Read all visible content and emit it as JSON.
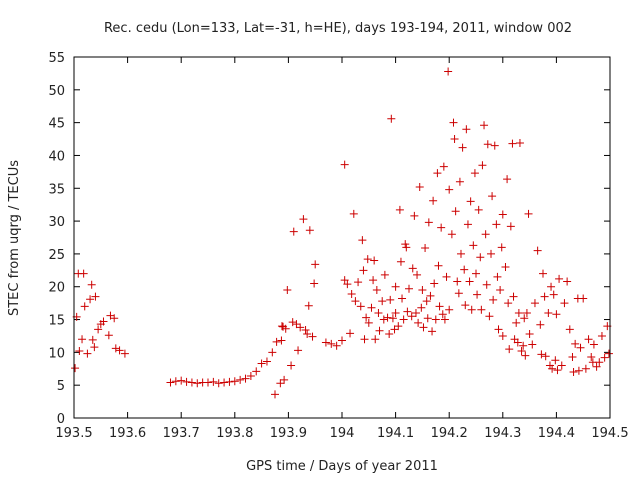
{
  "chart_data": {
    "type": "scatter",
    "title": "Rec. cedu (Lon=133, Lat=-31, h=HE), days 193-194, 2011, window 002",
    "xlabel": "GPS time / Days of year 2011",
    "ylabel": "STEC from uqrg / TECUs",
    "xlim": [
      193.5,
      194.5
    ],
    "ylim": [
      0,
      55
    ],
    "xticks": [
      193.5,
      193.6,
      193.7,
      193.8,
      193.9,
      194,
      194.1,
      194.2,
      194.3,
      194.4,
      194.5
    ],
    "xtick_labels": [
      "193.5",
      "193.6",
      "193.7",
      "193.8",
      "193.9",
      "194",
      "194.1",
      "194.2",
      "194.3",
      "194.4",
      "194.5"
    ],
    "yticks": [
      0,
      5,
      10,
      15,
      20,
      25,
      30,
      35,
      40,
      45,
      50,
      55
    ],
    "ytick_labels": [
      "0",
      "5",
      "10",
      "15",
      "20",
      "25",
      "30",
      "35",
      "40",
      "45",
      "50",
      "55"
    ],
    "marker": "plus",
    "color": "#cc0000",
    "grid": false,
    "points": [
      [
        193.502,
        7.6
      ],
      [
        193.505,
        15.4
      ],
      [
        193.508,
        22.0
      ],
      [
        193.51,
        10.2
      ],
      [
        193.515,
        12.0
      ],
      [
        193.518,
        22.0
      ],
      [
        193.52,
        17.0
      ],
      [
        193.525,
        9.8
      ],
      [
        193.53,
        18.1
      ],
      [
        193.533,
        20.3
      ],
      [
        193.535,
        11.9
      ],
      [
        193.538,
        10.8
      ],
      [
        193.54,
        18.5
      ],
      [
        193.545,
        13.5
      ],
      [
        193.55,
        14.3
      ],
      [
        193.555,
        14.7
      ],
      [
        193.565,
        12.6
      ],
      [
        193.568,
        15.6
      ],
      [
        193.575,
        15.2
      ],
      [
        193.578,
        10.6
      ],
      [
        193.585,
        10.3
      ],
      [
        193.595,
        9.8
      ],
      [
        193.68,
        5.4
      ],
      [
        193.69,
        5.6
      ],
      [
        193.7,
        5.7
      ],
      [
        193.71,
        5.5
      ],
      [
        193.72,
        5.4
      ],
      [
        193.73,
        5.3
      ],
      [
        193.74,
        5.4
      ],
      [
        193.75,
        5.4
      ],
      [
        193.76,
        5.5
      ],
      [
        193.77,
        5.3
      ],
      [
        193.78,
        5.4
      ],
      [
        193.79,
        5.5
      ],
      [
        193.8,
        5.6
      ],
      [
        193.81,
        5.8
      ],
      [
        193.82,
        6.0
      ],
      [
        193.83,
        6.4
      ],
      [
        193.84,
        7.1
      ],
      [
        193.85,
        8.3
      ],
      [
        193.86,
        8.6
      ],
      [
        193.87,
        10.0
      ],
      [
        193.875,
        3.6
      ],
      [
        193.878,
        11.6
      ],
      [
        193.885,
        5.3
      ],
      [
        193.887,
        11.8
      ],
      [
        193.888,
        14.0
      ],
      [
        193.89,
        13.9
      ],
      [
        193.892,
        5.8
      ],
      [
        193.895,
        13.6
      ],
      [
        193.898,
        19.5
      ],
      [
        193.905,
        8.0
      ],
      [
        193.908,
        14.6
      ],
      [
        193.91,
        28.4
      ],
      [
        193.915,
        14.3
      ],
      [
        193.918,
        10.3
      ],
      [
        193.922,
        13.8
      ],
      [
        193.928,
        30.3
      ],
      [
        193.932,
        13.4
      ],
      [
        193.935,
        12.8
      ],
      [
        193.938,
        17.1
      ],
      [
        193.94,
        28.6
      ],
      [
        193.945,
        12.4
      ],
      [
        193.948,
        20.5
      ],
      [
        193.95,
        23.4
      ],
      [
        193.97,
        11.5
      ],
      [
        193.98,
        11.3
      ],
      [
        193.99,
        11.0
      ],
      [
        194.0,
        11.8
      ],
      [
        194.005,
        21.0
      ],
      [
        194.005,
        38.6
      ],
      [
        194.01,
        20.4
      ],
      [
        194.015,
        12.9
      ],
      [
        194.018,
        18.9
      ],
      [
        194.022,
        31.1
      ],
      [
        194.025,
        17.8
      ],
      [
        194.03,
        20.7
      ],
      [
        194.035,
        17.0
      ],
      [
        194.038,
        27.1
      ],
      [
        194.04,
        22.5
      ],
      [
        194.042,
        12.0
      ],
      [
        194.045,
        15.3
      ],
      [
        194.048,
        24.2
      ],
      [
        194.05,
        14.5
      ],
      [
        194.055,
        16.8
      ],
      [
        194.058,
        21.0
      ],
      [
        194.06,
        24.0
      ],
      [
        194.062,
        12.0
      ],
      [
        194.065,
        19.5
      ],
      [
        194.068,
        16.0
      ],
      [
        194.07,
        13.3
      ],
      [
        194.075,
        17.8
      ],
      [
        194.078,
        15.0
      ],
      [
        194.08,
        21.8
      ],
      [
        194.085,
        15.3
      ],
      [
        194.088,
        12.8
      ],
      [
        194.09,
        18.0
      ],
      [
        194.092,
        45.6
      ],
      [
        194.095,
        15.2
      ],
      [
        194.098,
        13.5
      ],
      [
        194.1,
        20.0
      ],
      [
        194.1,
        16.0
      ],
      [
        194.105,
        14.0
      ],
      [
        194.108,
        31.7
      ],
      [
        194.11,
        23.8
      ],
      [
        194.112,
        18.2
      ],
      [
        194.115,
        15.0
      ],
      [
        194.118,
        26.5
      ],
      [
        194.12,
        26.0
      ],
      [
        194.122,
        16.2
      ],
      [
        194.125,
        19.7
      ],
      [
        194.13,
        15.5
      ],
      [
        194.132,
        22.8
      ],
      [
        194.135,
        30.8
      ],
      [
        194.138,
        16.0
      ],
      [
        194.14,
        21.8
      ],
      [
        194.142,
        14.5
      ],
      [
        194.145,
        35.2
      ],
      [
        194.148,
        16.8
      ],
      [
        194.15,
        19.5
      ],
      [
        194.152,
        13.8
      ],
      [
        194.155,
        25.9
      ],
      [
        194.158,
        17.8
      ],
      [
        194.16,
        15.2
      ],
      [
        194.162,
        29.8
      ],
      [
        194.165,
        18.6
      ],
      [
        194.168,
        13.2
      ],
      [
        194.17,
        33.1
      ],
      [
        194.172,
        20.5
      ],
      [
        194.175,
        15.0
      ],
      [
        194.178,
        37.3
      ],
      [
        194.18,
        23.2
      ],
      [
        194.182,
        17.0
      ],
      [
        194.185,
        29.0
      ],
      [
        194.188,
        15.8
      ],
      [
        194.19,
        38.3
      ],
      [
        194.192,
        15.0
      ],
      [
        194.195,
        21.5
      ],
      [
        194.198,
        52.8
      ],
      [
        194.2,
        16.5
      ],
      [
        194.2,
        34.8
      ],
      [
        194.205,
        28.0
      ],
      [
        194.208,
        45.0
      ],
      [
        194.21,
        42.5
      ],
      [
        194.212,
        31.5
      ],
      [
        194.215,
        20.8
      ],
      [
        194.218,
        19.0
      ],
      [
        194.22,
        36.0
      ],
      [
        194.222,
        25.0
      ],
      [
        194.225,
        41.2
      ],
      [
        194.228,
        22.6
      ],
      [
        194.23,
        17.2
      ],
      [
        194.232,
        44.0
      ],
      [
        194.235,
        29.5
      ],
      [
        194.238,
        20.8
      ],
      [
        194.24,
        33.0
      ],
      [
        194.242,
        16.5
      ],
      [
        194.245,
        26.3
      ],
      [
        194.248,
        37.3
      ],
      [
        194.25,
        22.0
      ],
      [
        194.252,
        18.8
      ],
      [
        194.255,
        31.7
      ],
      [
        194.258,
        24.5
      ],
      [
        194.26,
        16.5
      ],
      [
        194.262,
        38.5
      ],
      [
        194.265,
        44.6
      ],
      [
        194.268,
        28.0
      ],
      [
        194.27,
        20.3
      ],
      [
        194.272,
        41.7
      ],
      [
        194.275,
        15.5
      ],
      [
        194.278,
        25.0
      ],
      [
        194.28,
        33.8
      ],
      [
        194.282,
        18.0
      ],
      [
        194.285,
        41.5
      ],
      [
        194.288,
        29.5
      ],
      [
        194.29,
        21.5
      ],
      [
        194.292,
        13.5
      ],
      [
        194.295,
        19.5
      ],
      [
        194.298,
        26.0
      ],
      [
        194.3,
        12.5
      ],
      [
        194.3,
        31.0
      ],
      [
        194.305,
        23.0
      ],
      [
        194.308,
        36.4
      ],
      [
        194.31,
        17.5
      ],
      [
        194.312,
        10.5
      ],
      [
        194.315,
        29.2
      ],
      [
        194.318,
        41.8
      ],
      [
        194.32,
        18.5
      ],
      [
        194.322,
        12.0
      ],
      [
        194.325,
        14.5
      ],
      [
        194.328,
        11.5
      ],
      [
        194.33,
        16.0
      ],
      [
        194.332,
        41.9
      ],
      [
        194.335,
        10.2
      ],
      [
        194.338,
        11.0
      ],
      [
        194.34,
        15.2
      ],
      [
        194.342,
        9.5
      ],
      [
        194.345,
        16.0
      ],
      [
        194.348,
        31.1
      ],
      [
        194.35,
        12.8
      ],
      [
        194.355,
        11.2
      ],
      [
        194.36,
        17.5
      ],
      [
        194.365,
        25.5
      ],
      [
        194.37,
        14.2
      ],
      [
        194.372,
        9.7
      ],
      [
        194.375,
        22.0
      ],
      [
        194.378,
        18.5
      ],
      [
        194.38,
        9.4
      ],
      [
        194.385,
        16.0
      ],
      [
        194.388,
        8.0
      ],
      [
        194.39,
        20.0
      ],
      [
        194.392,
        7.5
      ],
      [
        194.395,
        18.8
      ],
      [
        194.398,
        8.8
      ],
      [
        194.4,
        15.8
      ],
      [
        194.402,
        7.3
      ],
      [
        194.405,
        21.2
      ],
      [
        194.41,
        8.0
      ],
      [
        194.415,
        17.5
      ],
      [
        194.42,
        20.8
      ],
      [
        194.425,
        13.5
      ],
      [
        194.43,
        9.3
      ],
      [
        194.432,
        7.0
      ],
      [
        194.435,
        11.3
      ],
      [
        194.44,
        18.2
      ],
      [
        194.442,
        7.2
      ],
      [
        194.445,
        10.7
      ],
      [
        194.45,
        18.2
      ],
      [
        194.455,
        7.5
      ],
      [
        194.46,
        12.0
      ],
      [
        194.465,
        9.3
      ],
      [
        194.468,
        8.5
      ],
      [
        194.47,
        11.2
      ],
      [
        194.475,
        7.8
      ],
      [
        194.48,
        8.5
      ],
      [
        194.485,
        12.5
      ],
      [
        194.49,
        9.2
      ],
      [
        194.495,
        14.0
      ],
      [
        194.498,
        9.8
      ]
    ]
  }
}
